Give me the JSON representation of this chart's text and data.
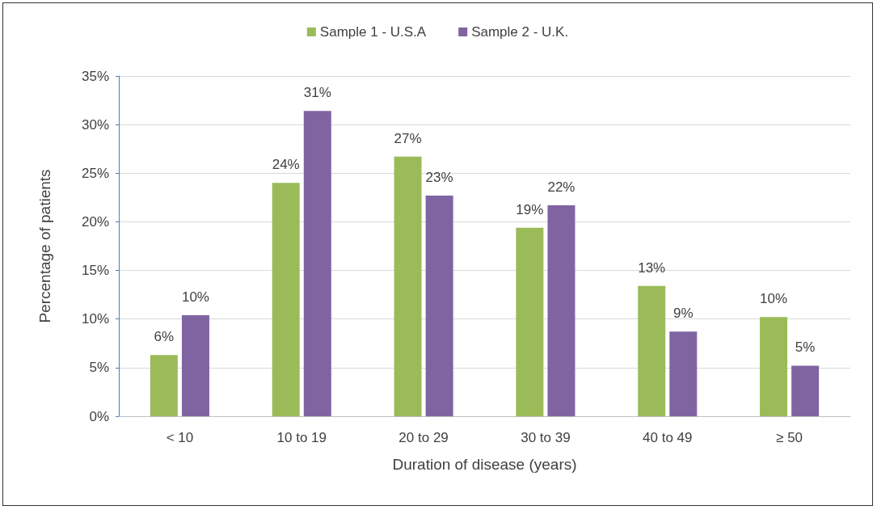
{
  "chart_data": {
    "type": "bar",
    "xlabel": "Duration of disease (years)",
    "ylabel": "Percentage of patients",
    "categories": [
      "< 10",
      "10 to 19",
      "20 to 29",
      "30 to 39",
      "40 to 49",
      "≥ 50"
    ],
    "series": [
      {
        "name": "Sample 1 - U.S.A",
        "color": "#9bbb59",
        "values": [
          6.3,
          24.0,
          26.7,
          19.4,
          13.4,
          10.2
        ],
        "value_labels": [
          "6%",
          "24%",
          "27%",
          "19%",
          "13%",
          "10%"
        ]
      },
      {
        "name": "Sample 2 - U.K.",
        "color": "#8064a2",
        "values": [
          10.4,
          31.4,
          22.7,
          21.7,
          8.7,
          5.2
        ],
        "value_labels": [
          "10%",
          "31%",
          "23%",
          "22%",
          "9%",
          "5%"
        ]
      }
    ],
    "ylim": [
      0,
      35
    ],
    "yticks": [
      {
        "value": 0,
        "label": "0%"
      },
      {
        "value": 5,
        "label": "5%"
      },
      {
        "value": 10,
        "label": "10%"
      },
      {
        "value": 15,
        "label": "15%"
      },
      {
        "value": 20,
        "label": "20%"
      },
      {
        "value": 25,
        "label": "25%"
      },
      {
        "value": 30,
        "label": "30%"
      },
      {
        "value": 35,
        "label": "35%"
      }
    ],
    "grid": "y",
    "legend": "top"
  }
}
